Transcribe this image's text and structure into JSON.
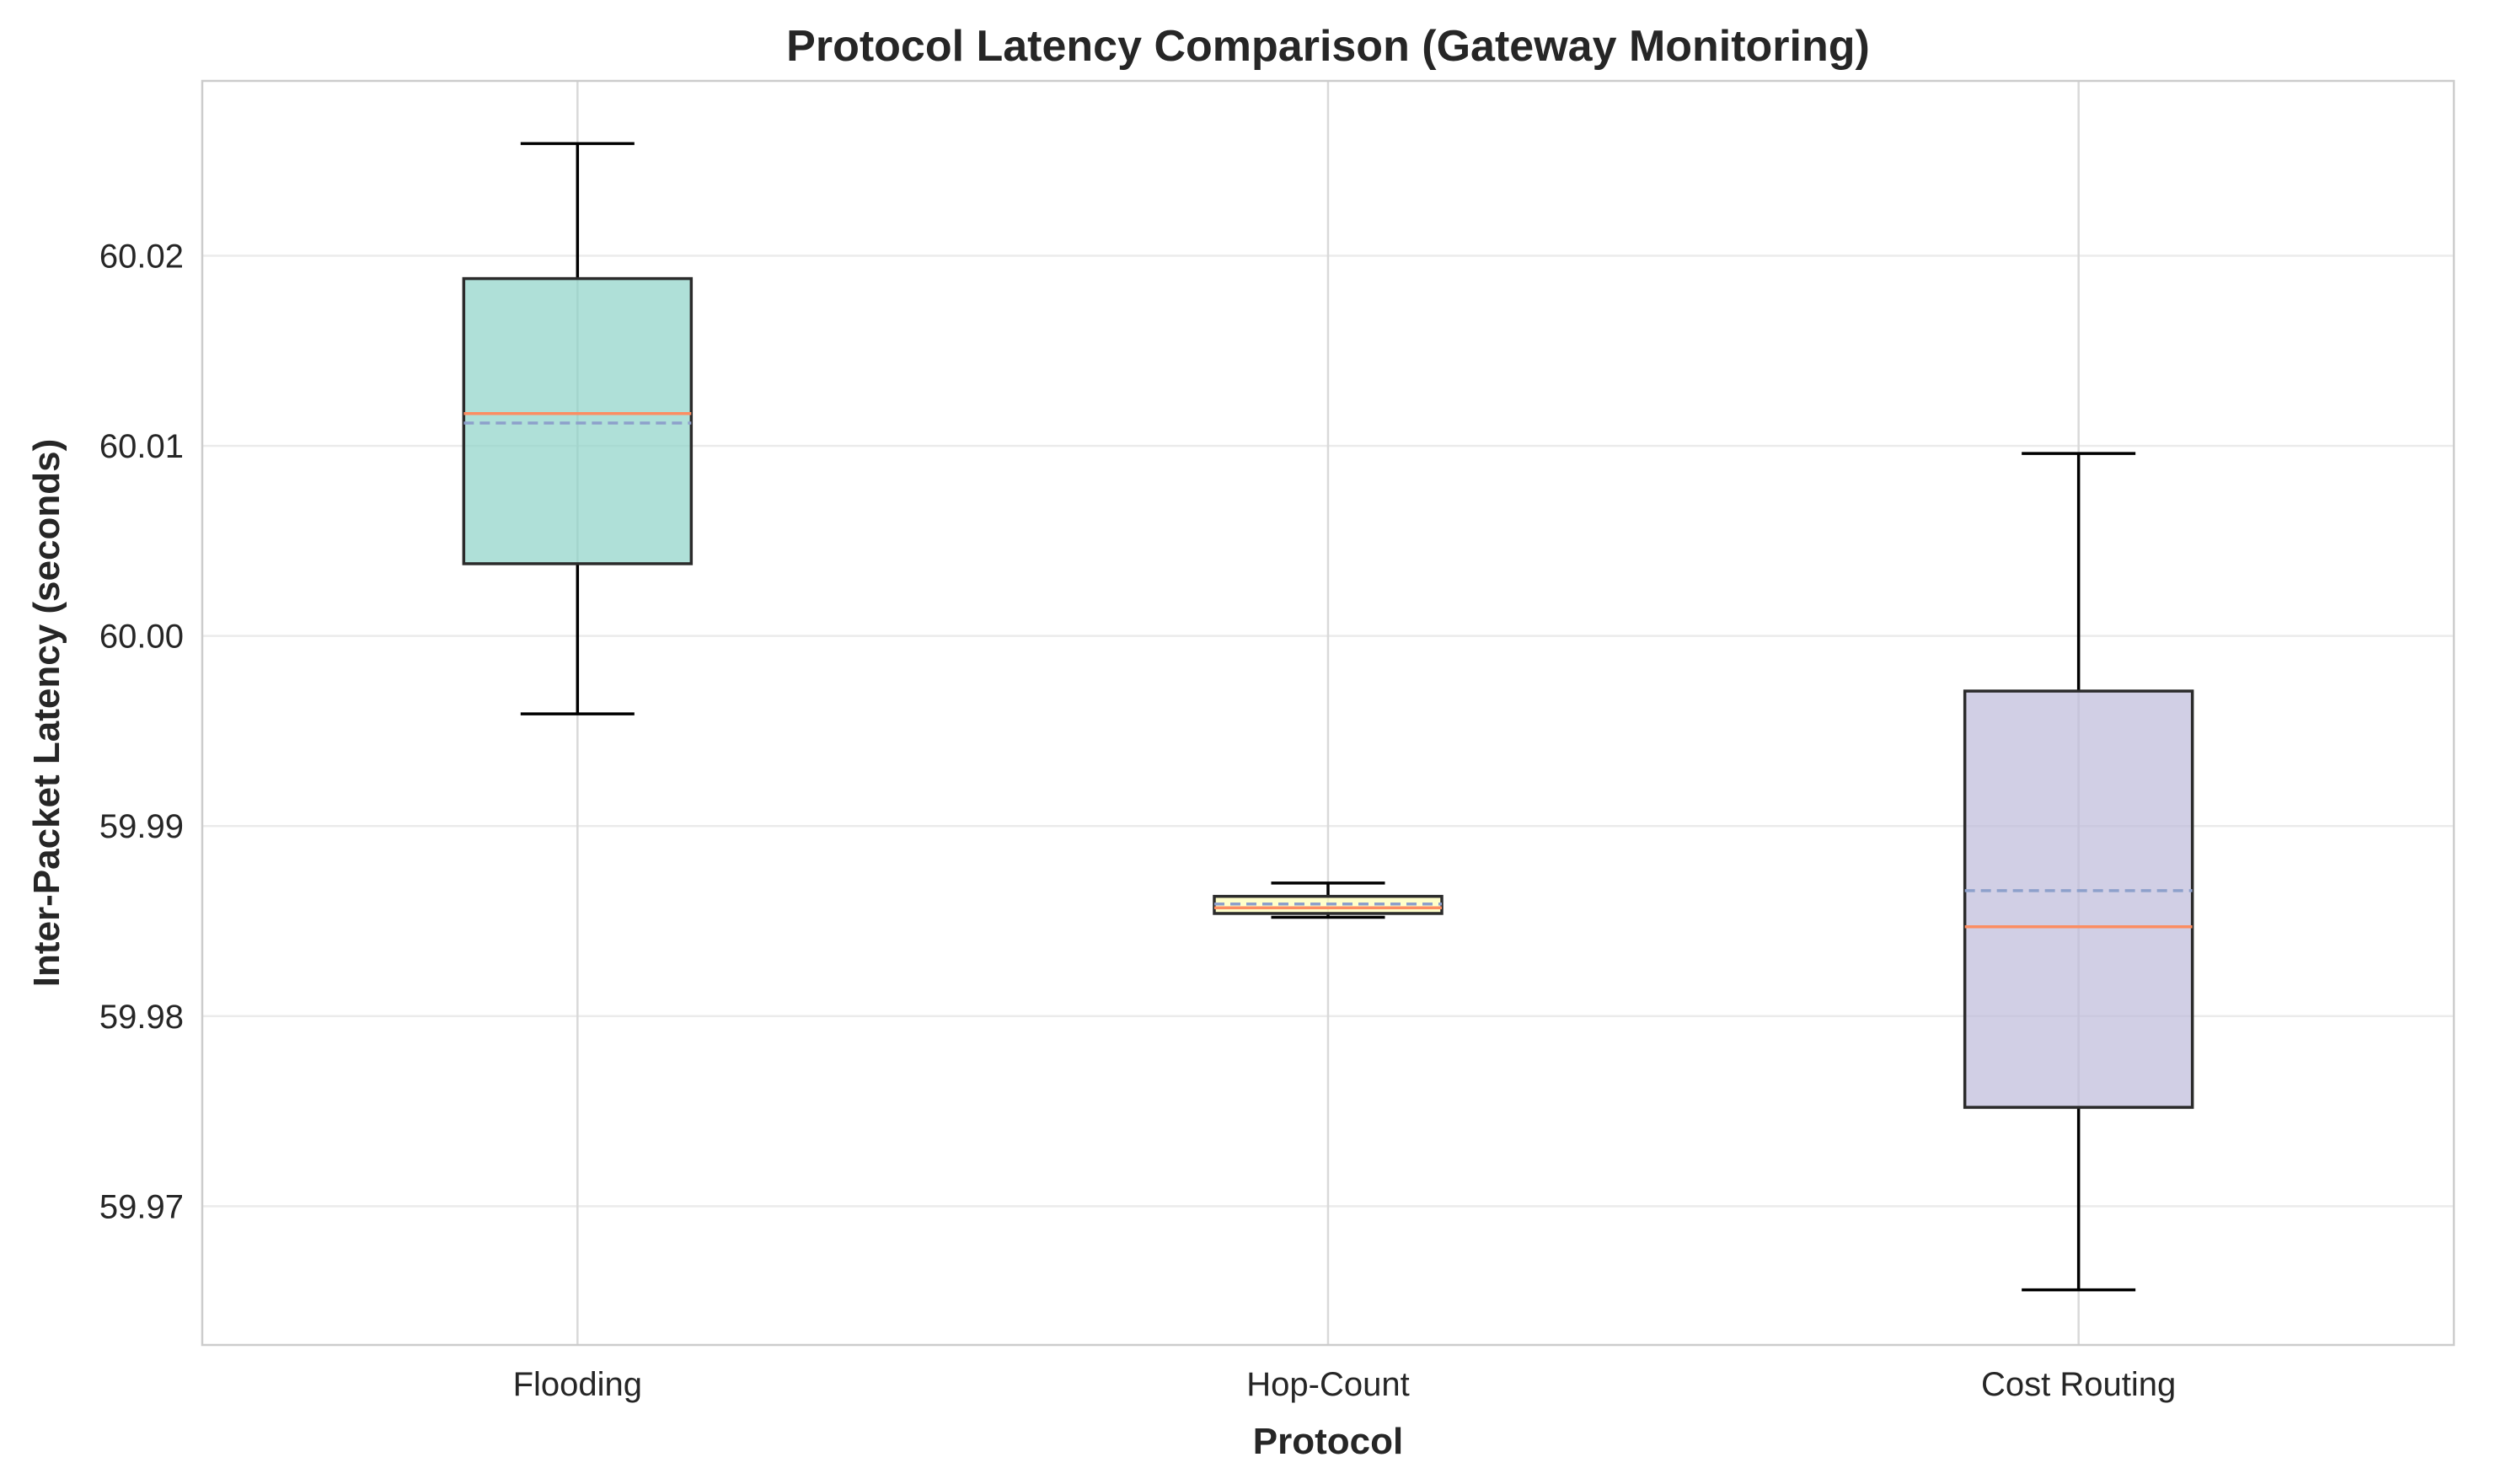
{
  "chart_data": {
    "type": "box",
    "title": "Protocol Latency Comparison (Gateway Monitoring)",
    "xlabel": "Protocol",
    "ylabel": "Inter-Packet Latency (seconds)",
    "ylim": [
      59.9627,
      60.0292
    ],
    "yticks": [
      59.97,
      59.98,
      59.99,
      60.0,
      60.01,
      60.02
    ],
    "ytick_labels": [
      "59.97",
      "59.98",
      "59.99",
      "60.00",
      "60.01",
      "60.02"
    ],
    "categories": [
      "Flooding",
      "Hop-Count",
      "Cost Routing"
    ],
    "grid": true,
    "boxes": [
      {
        "label": "Flooding",
        "whisker_low": 59.9959,
        "q1": 60.0038,
        "median": 60.0117,
        "mean": 60.0112,
        "q3": 60.0188,
        "whisker_high": 60.0259,
        "color": "#8dd3c7"
      },
      {
        "label": "Hop-Count",
        "whisker_low": 59.9852,
        "q1": 59.9854,
        "median": 59.9857,
        "mean": 59.9859,
        "q3": 59.9863,
        "whisker_high": 59.987,
        "color": "#ffffb3"
      },
      {
        "label": "Cost Routing",
        "whisker_low": 59.9656,
        "q1": 59.9752,
        "median": 59.9847,
        "mean": 59.9866,
        "q3": 59.9971,
        "whisker_high": 60.0096,
        "color": "#bebada"
      }
    ],
    "median_color": "#fc8d62",
    "mean_color": "#8da0cb"
  }
}
